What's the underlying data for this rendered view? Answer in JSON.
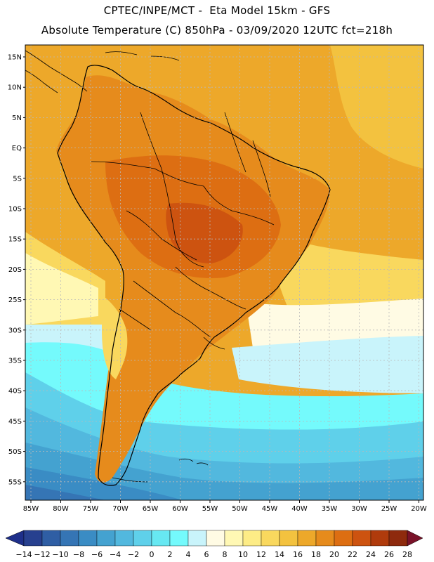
{
  "header": {
    "line1": "CPTEC/INPE/MCT -  Eta Model 15km - GFS",
    "line2": "Absolute Temperature (C) 850hPa - 03/09/2020 12UTC fct=218h"
  },
  "axes": {
    "lat_labels": [
      "15N",
      "10N",
      "5N",
      "EQ",
      "5S",
      "10S",
      "15S",
      "20S",
      "25S",
      "30S",
      "35S",
      "40S",
      "45S",
      "50S",
      "55S"
    ],
    "lon_labels": [
      "85W",
      "80W",
      "75W",
      "70W",
      "65W",
      "60W",
      "55W",
      "50W",
      "45W",
      "40W",
      "35W",
      "30W",
      "25W",
      "20W"
    ]
  },
  "colorbar": {
    "labels": [
      "-14",
      "-12",
      "-10",
      "-8",
      "-6",
      "-4",
      "-2",
      "0",
      "2",
      "4",
      "6",
      "8",
      "10",
      "12",
      "14",
      "16",
      "18",
      "20",
      "22",
      "24",
      "26",
      "28"
    ],
    "colors": [
      "#27408f",
      "#2f5ea4",
      "#3575b5",
      "#3a8cc4",
      "#44a2d0",
      "#52b8de",
      "#5fd0ea",
      "#67e8f2",
      "#74fafc",
      "#c9f4fb",
      "#fffbe4",
      "#fff8b4",
      "#fdec86",
      "#f9d85e",
      "#f3c23f",
      "#eda82a",
      "#e68b1c",
      "#dd6e12",
      "#cd5310",
      "#b03b0c",
      "#8e2a0d"
    ],
    "end_low": "#1e2f8a",
    "end_high": "#7a1229"
  },
  "map": {
    "colors": {
      "ocean_north": "#eda82a",
      "ocean_north_deep": "#f3c23f",
      "warm_land": "#e68b1c",
      "hot_core": "#dd6e12",
      "hottest": "#cd5310",
      "subtropic": "#f9d85e",
      "mild": "#fff8b4",
      "pale": "#fffbe4",
      "cool": "#c9f4fb",
      "cyan": "#74fafc",
      "cyan2": "#5fd0ea",
      "blue1": "#52b8de",
      "blue2": "#44a2d0",
      "blue3": "#3a8cc4",
      "blue4": "#3575b5",
      "coast": "#000000",
      "grid": "#b9b9b9"
    }
  }
}
